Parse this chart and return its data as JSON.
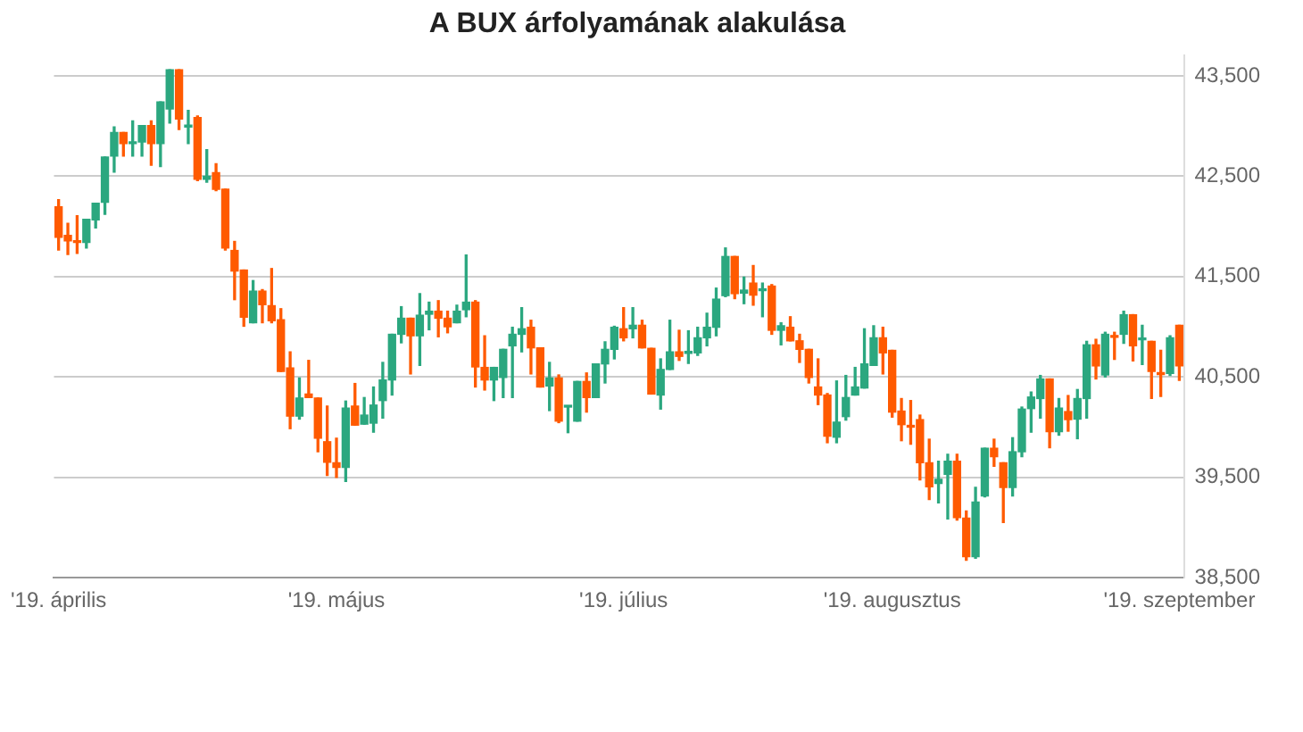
{
  "chart_data": {
    "type": "candlestick",
    "title": "A BUX árfolyamának alakulása",
    "categories": [
      "'19. április",
      null,
      null,
      null,
      null,
      null,
      null,
      null,
      null,
      null,
      null,
      null,
      null,
      null,
      null,
      null,
      null,
      null,
      null,
      null,
      null,
      null,
      null,
      null,
      null,
      null,
      null,
      null,
      null,
      null,
      "'19. május",
      null,
      null,
      null,
      null,
      null,
      null,
      null,
      null,
      null,
      null,
      null,
      null,
      null,
      null,
      null,
      null,
      null,
      null,
      null,
      null,
      null,
      null,
      null,
      null,
      null,
      null,
      null,
      null,
      null,
      null,
      "'19. július",
      null,
      null,
      null,
      null,
      null,
      null,
      null,
      null,
      null,
      null,
      null,
      null,
      null,
      null,
      null,
      null,
      null,
      null,
      null,
      null,
      null,
      null,
      null,
      null,
      null,
      null,
      null,
      null,
      "'19. augusztus",
      null,
      null,
      null,
      null,
      null,
      null,
      null,
      null,
      null,
      null,
      null,
      null,
      null,
      null,
      null,
      null,
      null,
      null,
      null,
      null,
      null,
      null,
      null,
      null,
      null,
      null,
      null,
      null,
      null,
      null,
      "'19. szeptember"
    ],
    "ohlc": [
      [
        42195,
        42265,
        41765,
        41890
      ],
      [
        41910,
        42030,
        41720,
        41855
      ],
      [
        41850,
        42105,
        41730,
        41840
      ],
      [
        41840,
        42070,
        41785,
        42070
      ],
      [
        42065,
        42230,
        41985,
        42230
      ],
      [
        42240,
        42690,
        42120,
        42690
      ],
      [
        42700,
        42990,
        42540,
        42935
      ],
      [
        42935,
        42935,
        42700,
        42825
      ],
      [
        42825,
        43050,
        42700,
        42840
      ],
      [
        42840,
        43005,
        42700,
        43005
      ],
      [
        43005,
        43050,
        42610,
        42825
      ],
      [
        42825,
        43240,
        42595,
        43240
      ],
      [
        43170,
        43560,
        43030,
        43560
      ],
      [
        43560,
        43560,
        42965,
        43070
      ],
      [
        42990,
        43155,
        42825,
        43000
      ],
      [
        43085,
        43100,
        42455,
        42470
      ],
      [
        42470,
        42765,
        42440,
        42500
      ],
      [
        42535,
        42625,
        42355,
        42370
      ],
      [
        42370,
        42370,
        41765,
        41785
      ],
      [
        41760,
        41850,
        41270,
        41555
      ],
      [
        41565,
        41565,
        41005,
        41095
      ],
      [
        41040,
        41460,
        41040,
        41355
      ],
      [
        41355,
        41370,
        41040,
        41220
      ],
      [
        41210,
        41580,
        41040,
        41060
      ],
      [
        41070,
        41180,
        40555,
        40555
      ],
      [
        40590,
        40750,
        39985,
        40110
      ],
      [
        40110,
        40490,
        40080,
        40290
      ],
      [
        40330,
        40665,
        40295,
        40295
      ],
      [
        40290,
        40290,
        39755,
        39890
      ],
      [
        39855,
        40210,
        39520,
        39650
      ],
      [
        39645,
        39890,
        39500,
        39600
      ],
      [
        39600,
        40260,
        39460,
        40190
      ],
      [
        40210,
        40435,
        40020,
        40020
      ],
      [
        40030,
        40295,
        40030,
        40120
      ],
      [
        40040,
        40400,
        39950,
        40220
      ],
      [
        40265,
        40645,
        40090,
        40470
      ],
      [
        40470,
        40925,
        40320,
        40925
      ],
      [
        40925,
        41200,
        40840,
        41085
      ],
      [
        41085,
        41085,
        40530,
        40910
      ],
      [
        40910,
        41330,
        40615,
        41115
      ],
      [
        41125,
        41245,
        40970,
        41155
      ],
      [
        41155,
        41260,
        40900,
        41085
      ],
      [
        41085,
        41155,
        40940,
        41000
      ],
      [
        41040,
        41215,
        41040,
        41155
      ],
      [
        41170,
        41715,
        41100,
        41245
      ],
      [
        41245,
        41260,
        40400,
        40600
      ],
      [
        40595,
        40910,
        40370,
        40470
      ],
      [
        40470,
        40595,
        40265,
        40595
      ],
      [
        40495,
        40775,
        40295,
        40775
      ],
      [
        40810,
        40995,
        40295,
        40925
      ],
      [
        40925,
        41190,
        40750,
        40980
      ],
      [
        40995,
        41065,
        40530,
        40790
      ],
      [
        40790,
        40790,
        40400,
        40400
      ],
      [
        40410,
        40645,
        40165,
        40490
      ],
      [
        40490,
        40520,
        40045,
        40060
      ],
      [
        40200,
        40210,
        39945,
        40210
      ],
      [
        40060,
        40455,
        40060,
        40455
      ],
      [
        40455,
        40540,
        40150,
        40295
      ],
      [
        40295,
        40630,
        40295,
        40630
      ],
      [
        40630,
        40850,
        40440,
        40775
      ],
      [
        40775,
        41005,
        40680,
        40995
      ],
      [
        40980,
        41190,
        40860,
        40890
      ],
      [
        40980,
        41190,
        40890,
        41015
      ],
      [
        41015,
        41065,
        40790,
        40790
      ],
      [
        40785,
        40785,
        40330,
        40330
      ],
      [
        40320,
        40680,
        40180,
        40575
      ],
      [
        40575,
        41065,
        40575,
        40750
      ],
      [
        40750,
        40965,
        40665,
        40705
      ],
      [
        40735,
        40960,
        40635,
        40755
      ],
      [
        40740,
        40995,
        40715,
        40890
      ],
      [
        40890,
        41135,
        40810,
        40995
      ],
      [
        40995,
        41385,
        40910,
        41275
      ],
      [
        41310,
        41785,
        41300,
        41700
      ],
      [
        41700,
        41700,
        41280,
        41330
      ],
      [
        41335,
        41495,
        41230,
        41365
      ],
      [
        41435,
        41610,
        41215,
        41315
      ],
      [
        41360,
        41435,
        41100,
        41370
      ],
      [
        41405,
        41420,
        40925,
        40965
      ],
      [
        40965,
        41040,
        40820,
        41010
      ],
      [
        40995,
        41100,
        40860,
        40860
      ],
      [
        40860,
        40925,
        40645,
        40775
      ],
      [
        40775,
        40775,
        40440,
        40495
      ],
      [
        40400,
        40680,
        40225,
        40320
      ],
      [
        40320,
        40335,
        39845,
        39910
      ],
      [
        39900,
        40460,
        39845,
        40050
      ],
      [
        40105,
        40515,
        40070,
        40295
      ],
      [
        40320,
        40595,
        40320,
        40400
      ],
      [
        40390,
        40980,
        40390,
        40630
      ],
      [
        40615,
        41010,
        40615,
        40890
      ],
      [
        40890,
        40995,
        40530,
        40740
      ],
      [
        40765,
        40765,
        40100,
        40150
      ],
      [
        40160,
        40285,
        39865,
        40025
      ],
      [
        40015,
        40265,
        39830,
        40000
      ],
      [
        40075,
        40120,
        39475,
        39645
      ],
      [
        39645,
        39880,
        39280,
        39405
      ],
      [
        39440,
        39660,
        39245,
        39480
      ],
      [
        39530,
        39730,
        39085,
        39660
      ],
      [
        39660,
        39730,
        39075,
        39100
      ],
      [
        39095,
        39165,
        38675,
        38710
      ],
      [
        38710,
        39400,
        38695,
        39255
      ],
      [
        39315,
        39790,
        39305,
        39790
      ],
      [
        39790,
        39880,
        39610,
        39705
      ],
      [
        39645,
        39645,
        39050,
        39400
      ],
      [
        39400,
        39895,
        39315,
        39755
      ],
      [
        39755,
        40200,
        39705,
        40180
      ],
      [
        40185,
        40350,
        39950,
        40300
      ],
      [
        40285,
        40515,
        40090,
        40480
      ],
      [
        40480,
        40480,
        39795,
        39955
      ],
      [
        39955,
        40285,
        39920,
        40190
      ],
      [
        40155,
        40315,
        39960,
        40075
      ],
      [
        40080,
        40375,
        39885,
        40285
      ],
      [
        40285,
        40855,
        40090,
        40820
      ],
      [
        40820,
        40875,
        40480,
        40610
      ],
      [
        40520,
        40945,
        40500,
        40925
      ],
      [
        40910,
        40945,
        40675,
        40895
      ],
      [
        40925,
        41155,
        40835,
        41120
      ],
      [
        41120,
        41120,
        40660,
        40810
      ],
      [
        40870,
        41015,
        40625,
        40885
      ],
      [
        40855,
        40855,
        40285,
        40555
      ],
      [
        40540,
        40765,
        40305,
        40525
      ],
      [
        40535,
        40910,
        40515,
        40890
      ],
      [
        41015,
        41015,
        40465,
        40610
      ]
    ],
    "colors": [
      "#ff5a00",
      "#ff5a00",
      "#ff5a00",
      "#2ba77f",
      "#2ba77f",
      "#2ba77f",
      "#2ba77f",
      "#ff5a00",
      "#2ba77f",
      "#2ba77f",
      "#ff5a00",
      "#2ba77f",
      "#2ba77f",
      "#ff5a00",
      "#2ba77f",
      "#ff5a00",
      "#2ba77f",
      "#ff5a00",
      "#ff5a00",
      "#ff5a00",
      "#ff5a00",
      "#2ba77f",
      "#ff5a00",
      "#ff5a00",
      "#ff5a00",
      "#ff5a00",
      "#2ba77f",
      "#ff5a00",
      "#ff5a00",
      "#ff5a00",
      "#ff5a00",
      "#2ba77f",
      "#ff5a00",
      "#2ba77f",
      "#2ba77f",
      "#2ba77f",
      "#2ba77f",
      "#2ba77f",
      "#ff5a00",
      "#2ba77f",
      "#2ba77f",
      "#ff5a00",
      "#ff5a00",
      "#2ba77f",
      "#2ba77f",
      "#ff5a00",
      "#ff5a00",
      "#2ba77f",
      "#2ba77f",
      "#2ba77f",
      "#2ba77f",
      "#ff5a00",
      "#ff5a00",
      "#2ba77f",
      "#ff5a00",
      "#2ba77f",
      "#2ba77f",
      "#ff5a00",
      "#2ba77f",
      "#2ba77f",
      "#2ba77f",
      "#ff5a00",
      "#2ba77f",
      "#ff5a00",
      "#ff5a00",
      "#2ba77f",
      "#2ba77f",
      "#ff5a00",
      "#2ba77f",
      "#2ba77f",
      "#2ba77f",
      "#2ba77f",
      "#2ba77f",
      "#ff5a00",
      "#2ba77f",
      "#ff5a00",
      "#2ba77f",
      "#ff5a00",
      "#2ba77f",
      "#ff5a00",
      "#ff5a00",
      "#ff5a00",
      "#ff5a00",
      "#ff5a00",
      "#2ba77f",
      "#2ba77f",
      "#2ba77f",
      "#2ba77f",
      "#2ba77f",
      "#ff5a00",
      "#ff5a00",
      "#ff5a00",
      "#ff5a00",
      "#ff5a00",
      "#ff5a00",
      "#2ba77f",
      "#2ba77f",
      "#ff5a00",
      "#ff5a00",
      "#2ba77f",
      "#2ba77f",
      "#ff5a00",
      "#ff5a00",
      "#2ba77f",
      "#2ba77f",
      "#2ba77f",
      "#2ba77f",
      "#ff5a00",
      "#2ba77f",
      "#ff5a00",
      "#2ba77f",
      "#2ba77f",
      "#ff5a00",
      "#2ba77f",
      "#ff5a00",
      "#2ba77f",
      "#ff5a00",
      "#2ba77f",
      "#ff5a00",
      "#ff5a00",
      "#2ba77f",
      "#ff5a00"
    ],
    "ylim": [
      38500,
      43700
    ],
    "yticks": [
      {
        "value": 38500,
        "label": "38,500"
      },
      {
        "value": 39500,
        "label": "39,500"
      },
      {
        "value": 40500,
        "label": "40,500"
      },
      {
        "value": 41500,
        "label": "41,500"
      },
      {
        "value": 42500,
        "label": "42,500"
      },
      {
        "value": 43500,
        "label": "43,500"
      }
    ],
    "grid": "y"
  }
}
